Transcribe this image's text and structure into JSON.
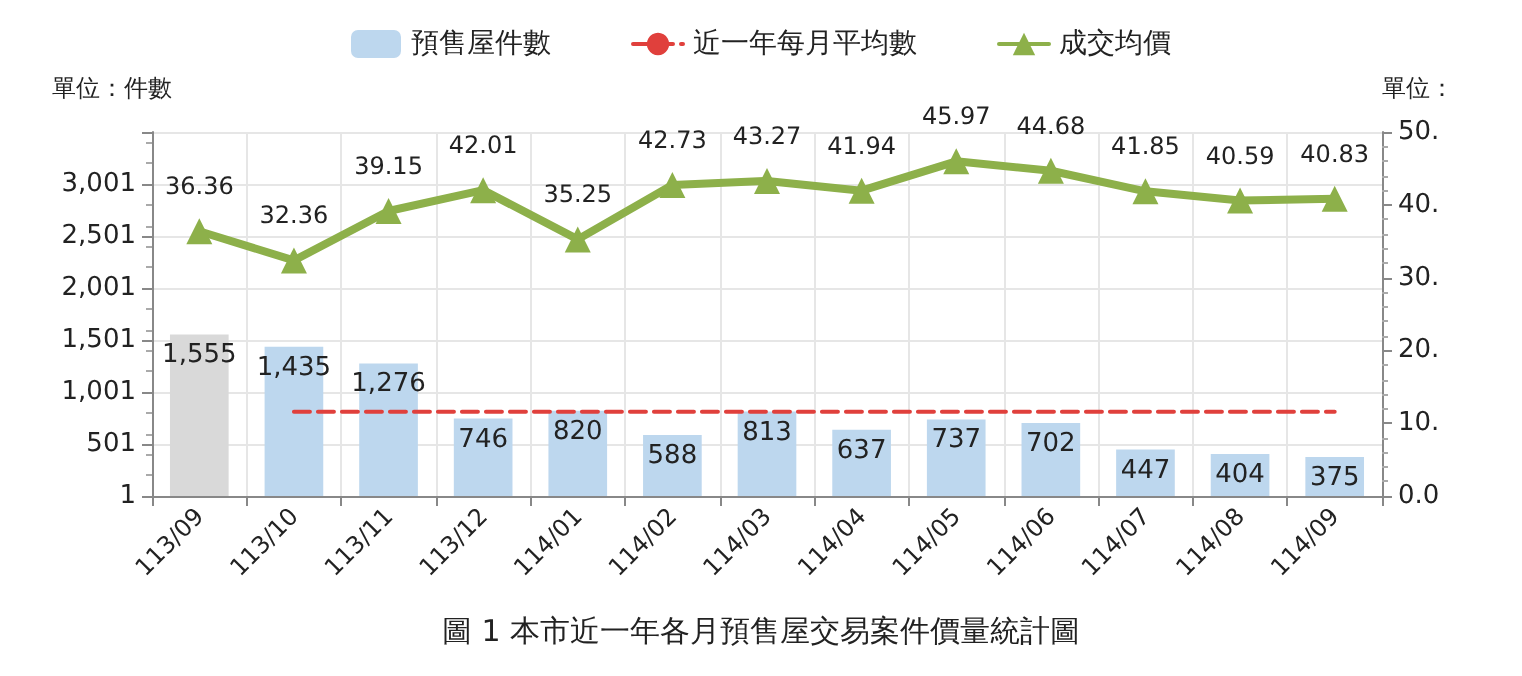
{
  "chart_data": {
    "type": "bar",
    "title": "圖 1 本市近一年各月預售屋交易案件價量統計圖",
    "ylabel": "單位：件數",
    "y2label": "單位：",
    "categories": [
      "113/09",
      "113/10",
      "113/11",
      "113/12",
      "114/01",
      "114/02",
      "114/03",
      "114/04",
      "114/05",
      "114/06",
      "114/07",
      "114/08",
      "114/09"
    ],
    "series": [
      {
        "name": "預售屋件數",
        "color": "#bdd7ee",
        "colors": [
          "#d9d9d9",
          "#bdd7ee",
          "#bdd7ee",
          "#bdd7ee",
          "#bdd7ee",
          "#bdd7ee",
          "#bdd7ee",
          "#bdd7ee",
          "#bdd7ee",
          "#bdd7ee",
          "#bdd7ee",
          "#bdd7ee",
          "#bdd7ee"
        ],
        "values": [
          1555,
          1435,
          1276,
          746,
          820,
          588,
          813,
          637,
          737,
          702,
          447,
          404,
          375
        ],
        "value_labels": [
          "1,555",
          "1,435",
          "1,276",
          "746",
          "820",
          "588",
          "813",
          "637",
          "737",
          "702",
          "447",
          "404",
          "375"
        ]
      },
      {
        "name": "近一年每月平均數",
        "type": "line",
        "color": "#e0403c",
        "line_style": "dashed",
        "marker": "none",
        "values": [
          null,
          810,
          810,
          810,
          810,
          810,
          810,
          810,
          810,
          810,
          810,
          810,
          810
        ]
      },
      {
        "name": "成交均價",
        "type": "line",
        "color": "#8db04a",
        "marker": "triangle",
        "axis": "y2",
        "values": [
          36.36,
          32.36,
          39.15,
          42.01,
          35.25,
          42.73,
          43.27,
          41.94,
          45.97,
          44.68,
          41.85,
          40.59,
          40.83
        ],
        "value_labels": [
          "36.36",
          "32.36",
          "39.15",
          "42.01",
          "35.25",
          "42.73",
          "43.27",
          "41.94",
          "45.97",
          "44.68",
          "41.85",
          "40.59",
          "40.83"
        ]
      }
    ],
    "ylim": [
      1,
      3501
    ],
    "yticks": [
      1,
      501,
      {
        "value": 1001,
        "label": "1,001"
      },
      {
        "value": 1501,
        "label": "1,501"
      },
      {
        "value": 2001,
        "label": "2,001"
      },
      {
        "value": 2501,
        "label": "2,501"
      },
      {
        "value": 3001,
        "label": "3,001"
      },
      {
        "value": 3501,
        "label": null
      }
    ],
    "y2lim": [
      0,
      50
    ],
    "y2ticks": [
      {
        "value": 0,
        "label": "0.0"
      },
      {
        "value": 10,
        "label": "10."
      },
      {
        "value": 20,
        "label": "20."
      },
      {
        "value": 30,
        "label": "30."
      },
      {
        "value": 40,
        "label": "40."
      },
      {
        "value": 50,
        "label": "50."
      }
    ],
    "grid": true,
    "legend": "top"
  }
}
